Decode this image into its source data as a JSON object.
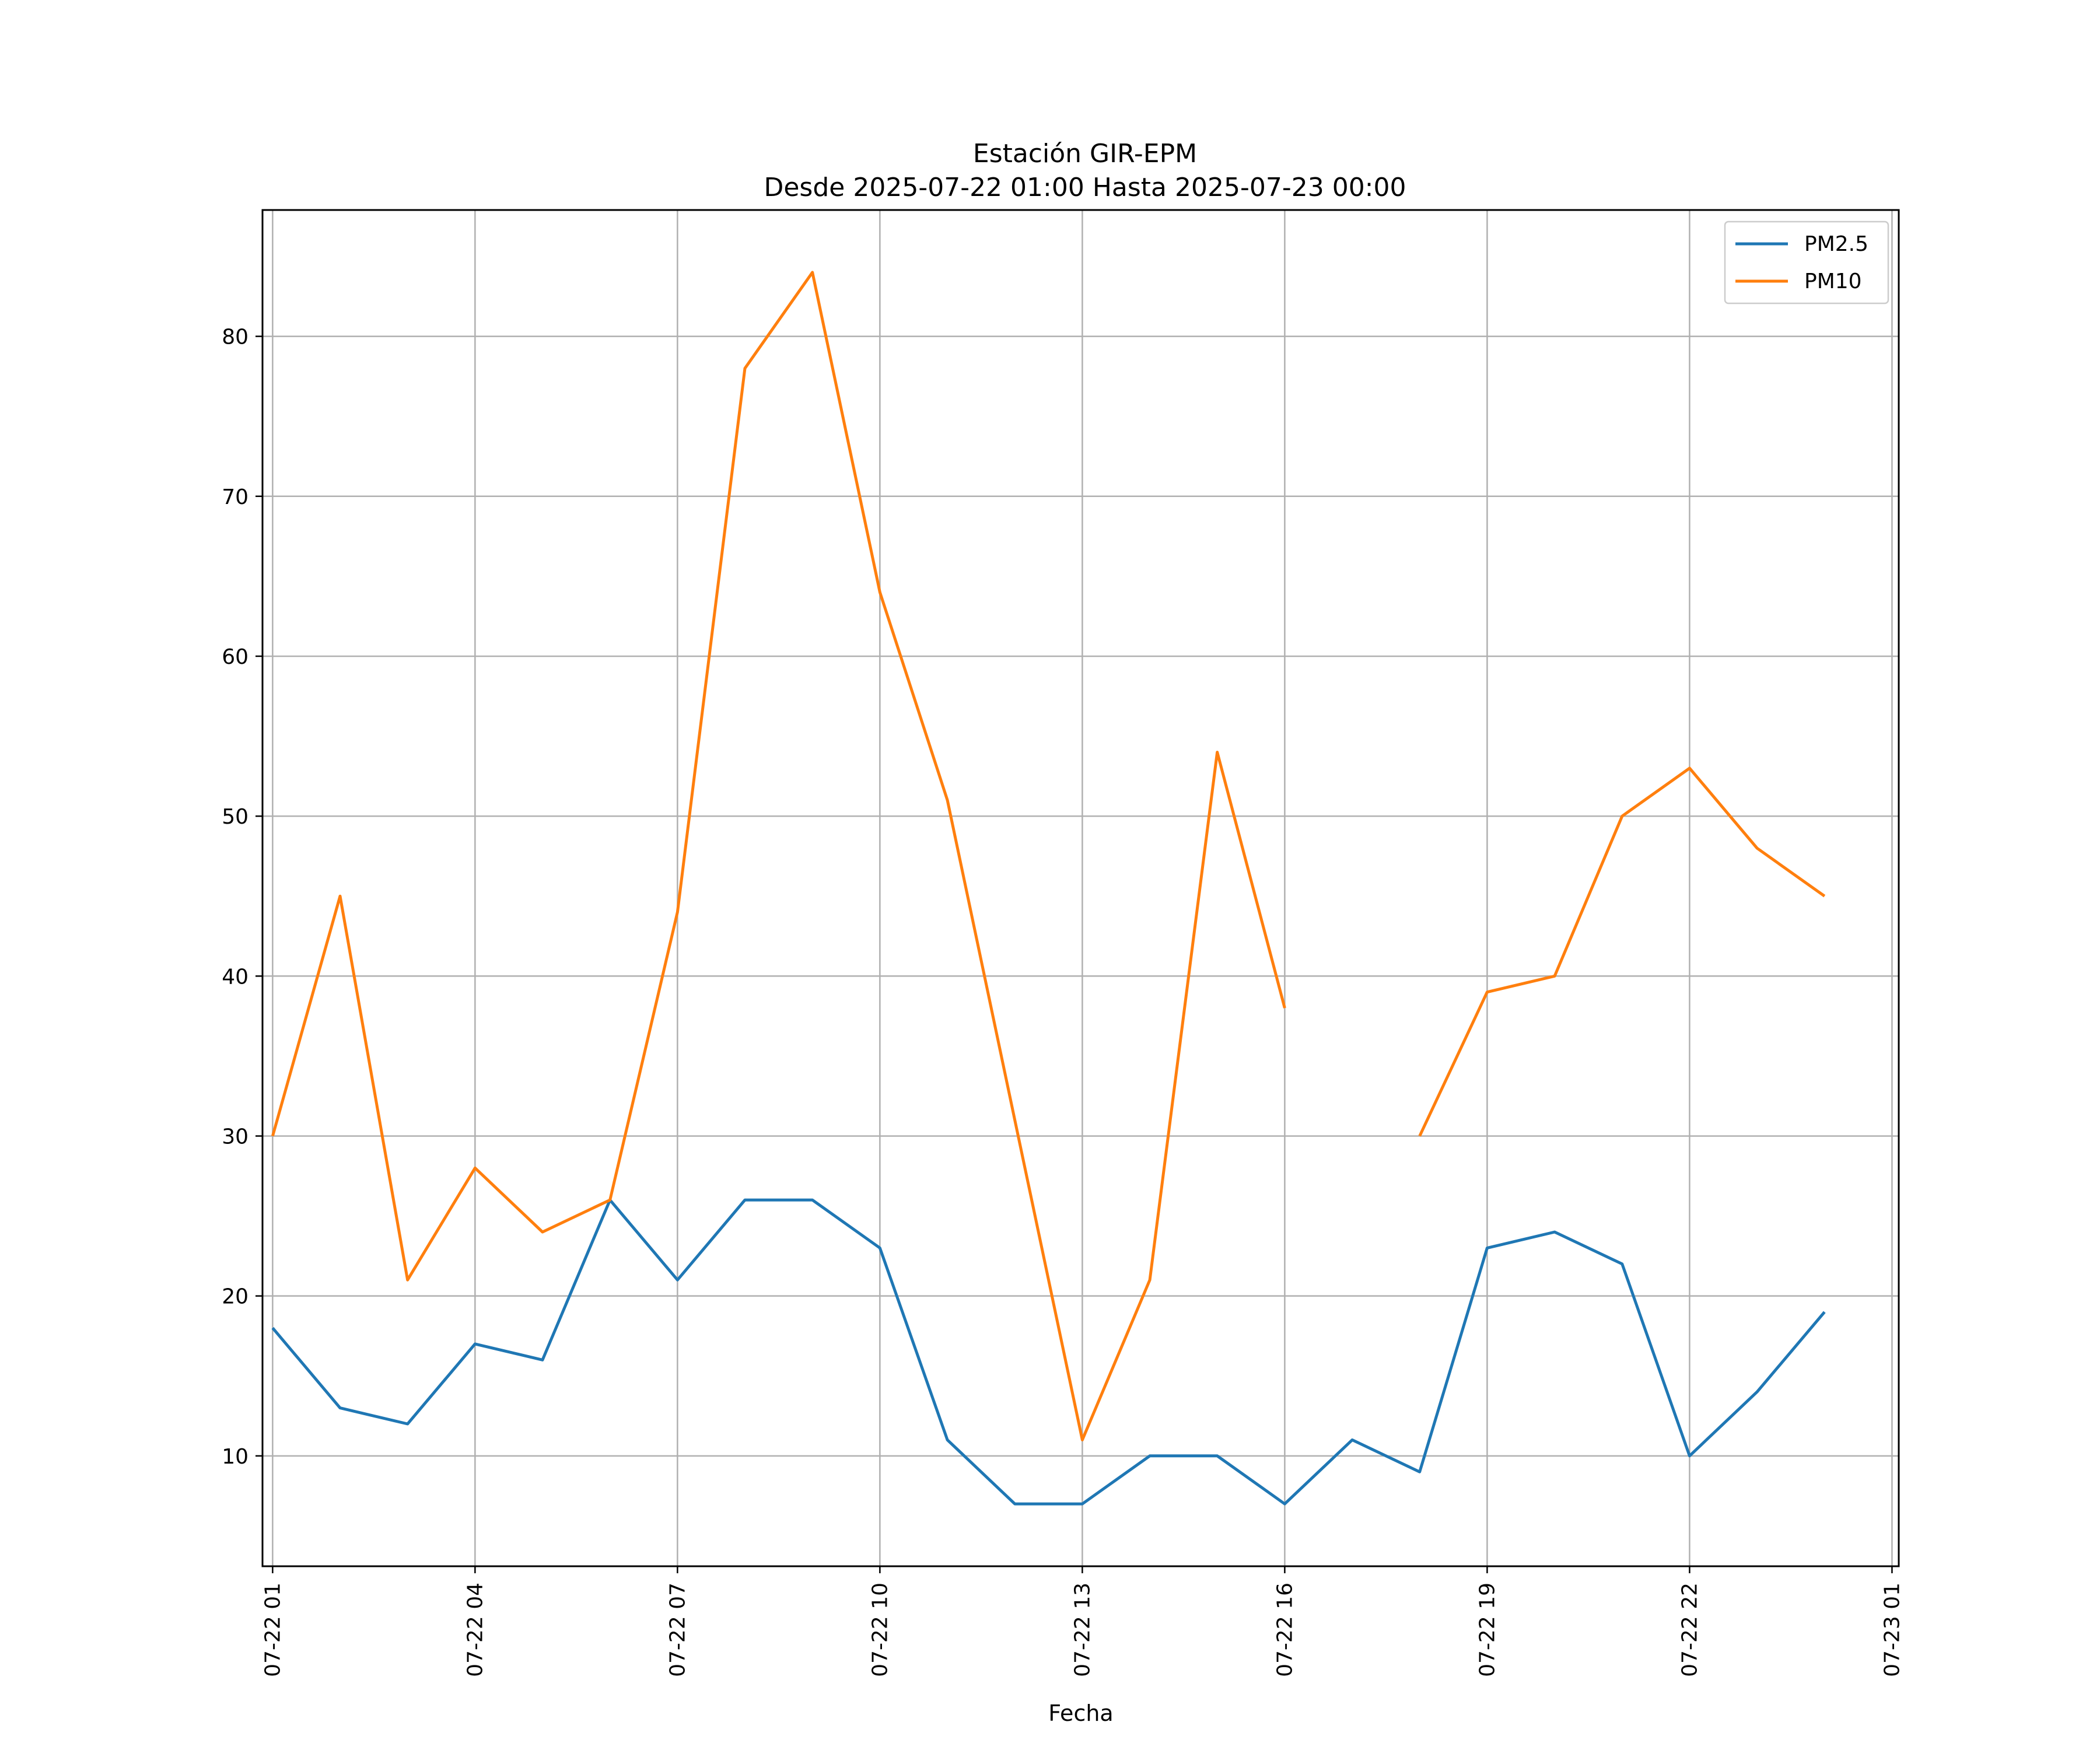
{
  "chart_data": {
    "type": "line",
    "title": "Estación GIR-EPM",
    "subtitle": "Desde 2025-07-22 01:00 Hasta 2025-07-23 00:00",
    "xlabel": "Fecha",
    "ylabel": "",
    "x": [
      "07-22 01",
      "07-22 02",
      "07-22 03",
      "07-22 04",
      "07-22 05",
      "07-22 06",
      "07-22 07",
      "07-22 08",
      "07-22 09",
      "07-22 10",
      "07-22 11",
      "07-22 12",
      "07-22 13",
      "07-22 14",
      "07-22 15",
      "07-22 16",
      "07-22 17",
      "07-22 18",
      "07-22 19",
      "07-22 20",
      "07-22 21",
      "07-22 22",
      "07-22 23",
      "07-23 00"
    ],
    "x_ticks": [
      "07-22 01",
      "07-22 04",
      "07-22 07",
      "07-22 10",
      "07-22 13",
      "07-22 16",
      "07-22 19",
      "07-22 22",
      "07-23 01"
    ],
    "y_ticks": [
      10,
      20,
      30,
      40,
      50,
      60,
      70,
      80
    ],
    "ylim": [
      3.1,
      87.9
    ],
    "xlim": [
      "07-22 -0.15",
      "07-23 01.1"
    ],
    "grid": true,
    "legend_position": "upper right",
    "series": [
      {
        "name": "PM2.5",
        "color": "#1f77b4",
        "values": [
          18,
          13,
          12,
          17,
          16,
          26,
          21,
          26,
          26,
          23,
          11,
          7,
          7,
          10,
          10,
          7,
          11,
          9,
          23,
          24,
          22,
          10,
          14,
          19
        ]
      },
      {
        "name": "PM10",
        "color": "#ff7f0e",
        "values": [
          30,
          45,
          21,
          28,
          24,
          26,
          44,
          78,
          84,
          64,
          51,
          31,
          11,
          21,
          54,
          38,
          null,
          30,
          39,
          40,
          50,
          53,
          48,
          45
        ]
      }
    ]
  }
}
